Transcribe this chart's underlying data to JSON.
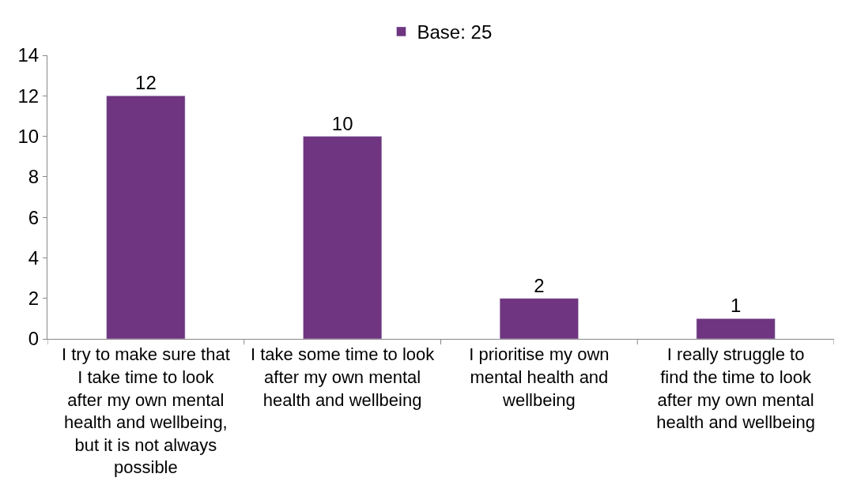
{
  "chart_data": {
    "type": "bar",
    "categories": [
      "I try to make sure that I take time to look after my own mental health and wellbeing, but it is not always possible",
      "I take some time to look after my own mental health and wellbeing",
      "I prioritise my own mental health and wellbeing",
      "I really struggle to find the time to look after my own mental health and wellbeing"
    ],
    "series": [
      {
        "name": "Base: 25",
        "color": "#6f3580",
        "values": [
          12,
          10,
          2,
          1
        ]
      }
    ],
    "ylim": [
      0,
      14
    ],
    "yticks": [
      0,
      2,
      4,
      6,
      8,
      10,
      12,
      14
    ],
    "legend": "top",
    "data_labels": true
  }
}
